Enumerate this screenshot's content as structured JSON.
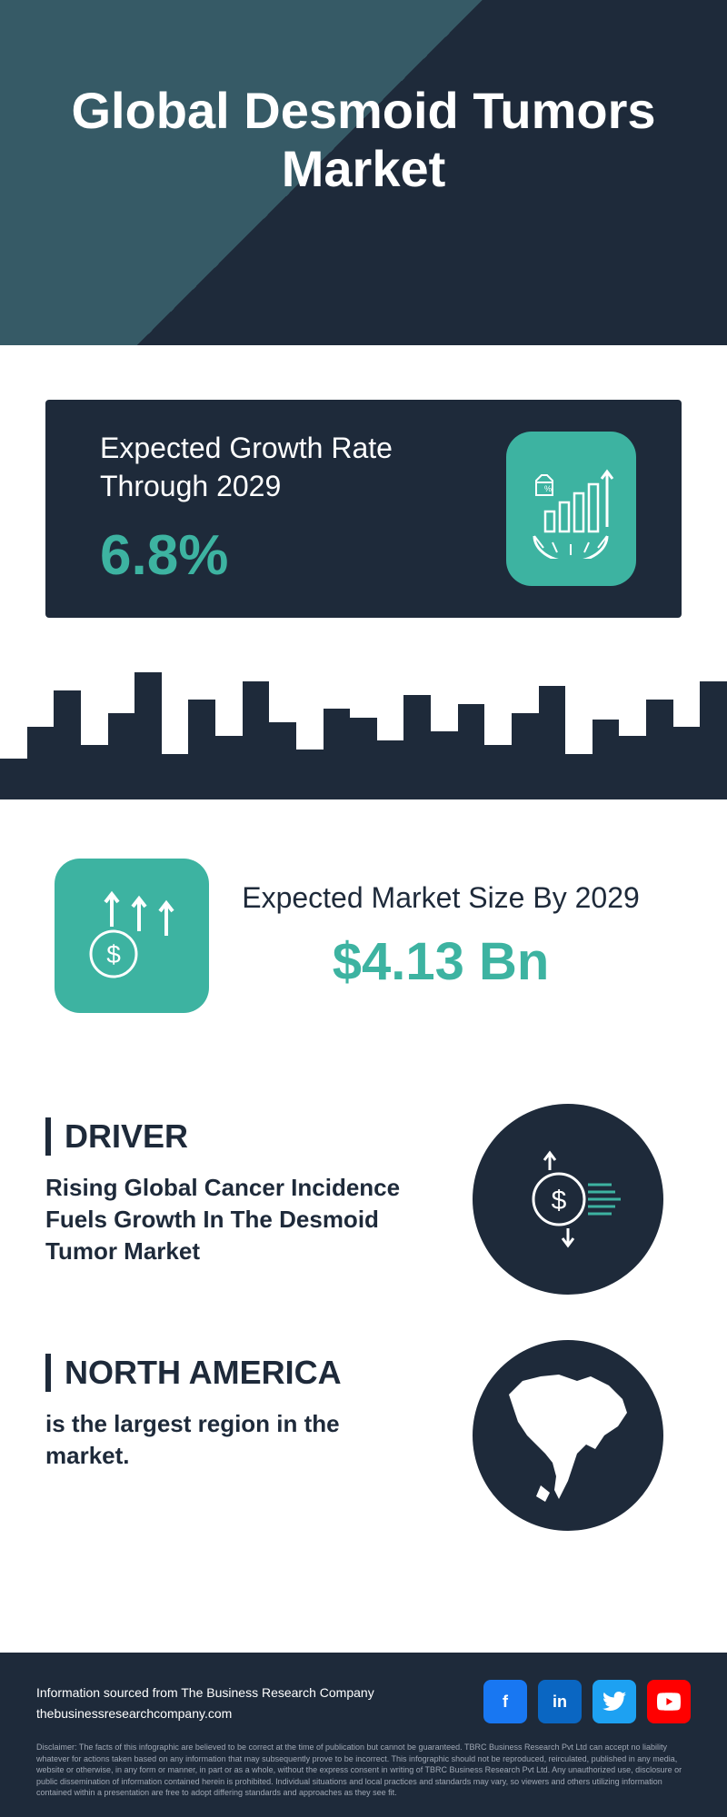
{
  "colors": {
    "dark": "#1e2a3a",
    "teal": "#3db3a1",
    "slate": "#365a66",
    "white": "#ffffff"
  },
  "header": {
    "title": "Global Desmoid Tumors Market"
  },
  "growth": {
    "label": "Expected Growth Rate Through 2029",
    "value": "6.8%"
  },
  "market_size": {
    "label": "Expected Market Size By 2029",
    "value": "$4.13 Bn"
  },
  "driver": {
    "heading": "DRIVER",
    "text": "Rising Global Cancer Incidence Fuels Growth In The Desmoid Tumor Market"
  },
  "region": {
    "heading": "NORTH AMERICA",
    "text": "is the largest region in the market."
  },
  "footer": {
    "source_line1": "Information sourced from The Business Research Company",
    "source_line2": "thebusinessresearchcompany.com",
    "disclaimer": "Disclaimer: The facts of this infographic are believed to be correct at the time of publication but cannot be guaranteed. TBRC Business Research Pvt Ltd can accept no liability whatever for actions taken based on any information that may subsequently prove to be incorrect. This infographic should not be reproduced, reirculated, published in any media, website or otherwise, in any form or manner, in part or as a whole, without the express consent in writing of TBRC Business Research Pvt Ltd. Any unauthorized use, disclosure or public dissemination of information contained herein is prohibited. Individual situations and local practices and standards may vary, so viewers and others utilizing information contained within a presentation are free to adopt differing standards and approaches as they see fit."
  },
  "social": {
    "facebook_color": "#1877f2",
    "linkedin_color": "#0a66c2",
    "twitter_color": "#1da1f2",
    "youtube_color": "#ff0000"
  },
  "skyline_heights": [
    45,
    80,
    120,
    60,
    95,
    140,
    50,
    110,
    70,
    130,
    85,
    55,
    100,
    90,
    65,
    115,
    75,
    105,
    60,
    95,
    125,
    50,
    88,
    70,
    110,
    80,
    130
  ]
}
